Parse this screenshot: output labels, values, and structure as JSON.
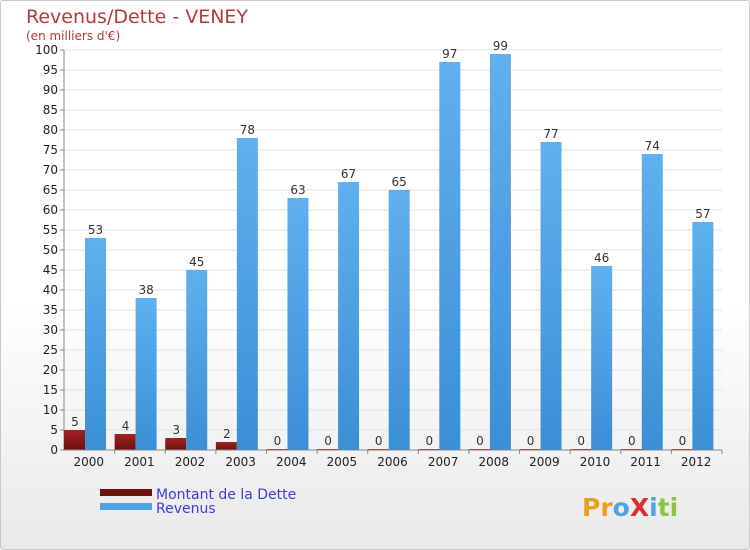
{
  "chart_data": {
    "type": "bar",
    "title": "Revenus/Dette - VENEY",
    "subtitle": "(en milliers d'€)",
    "categories": [
      "2000",
      "2001",
      "2002",
      "2003",
      "2004",
      "2005",
      "2006",
      "2007",
      "2008",
      "2009",
      "2010",
      "2011",
      "2012"
    ],
    "series": [
      {
        "name": "Montant de la Dette",
        "color": "#8b1a1a",
        "values": [
          5,
          4,
          3,
          2,
          0,
          0,
          0,
          0,
          0,
          0,
          0,
          0,
          0
        ]
      },
      {
        "name": "Revenus",
        "color": "#4ea3e6",
        "values": [
          53,
          38,
          45,
          78,
          63,
          67,
          65,
          97,
          99,
          77,
          46,
          74,
          57
        ]
      }
    ],
    "ylim": [
      0,
      100
    ],
    "yticks": [
      0,
      5,
      10,
      15,
      20,
      25,
      30,
      35,
      40,
      45,
      50,
      55,
      60,
      65,
      70,
      75,
      80,
      85,
      90,
      95,
      100
    ],
    "legend_position": "bottom-left",
    "logo": {
      "text": "ProXiti",
      "letters": [
        "P",
        "r",
        "o",
        "X",
        "i",
        "t",
        "i"
      ],
      "colors": [
        "#e8a020",
        "#e8a020",
        "#4ea3e6",
        "#d93030",
        "#4ea3e6",
        "#8cc63f",
        "#8cc63f"
      ]
    }
  }
}
